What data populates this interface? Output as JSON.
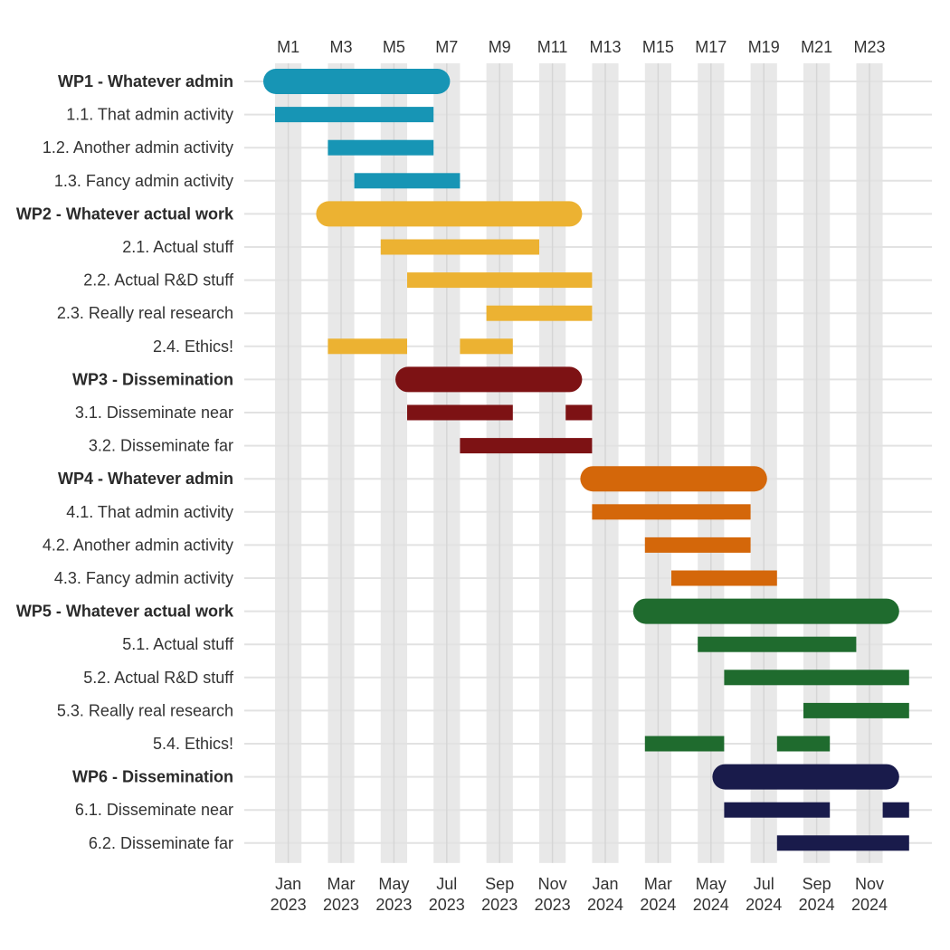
{
  "chart_data": {
    "type": "gantt",
    "title": "",
    "x_unit": "project month",
    "x_range": [
      1,
      24
    ],
    "top_axis_ticks": [
      {
        "month": 1,
        "label": "M1"
      },
      {
        "month": 3,
        "label": "M3"
      },
      {
        "month": 5,
        "label": "M5"
      },
      {
        "month": 7,
        "label": "M7"
      },
      {
        "month": 9,
        "label": "M9"
      },
      {
        "month": 11,
        "label": "M11"
      },
      {
        "month": 13,
        "label": "M13"
      },
      {
        "month": 15,
        "label": "M15"
      },
      {
        "month": 17,
        "label": "M17"
      },
      {
        "month": 19,
        "label": "M19"
      },
      {
        "month": 21,
        "label": "M21"
      },
      {
        "month": 23,
        "label": "M23"
      }
    ],
    "bottom_axis_ticks": [
      {
        "month": 1,
        "month_label": "Jan",
        "year_label": "2023"
      },
      {
        "month": 3,
        "month_label": "Mar",
        "year_label": "2023"
      },
      {
        "month": 5,
        "month_label": "May",
        "year_label": "2023"
      },
      {
        "month": 7,
        "month_label": "Jul",
        "year_label": "2023"
      },
      {
        "month": 9,
        "month_label": "Sep",
        "year_label": "2023"
      },
      {
        "month": 11,
        "month_label": "Nov",
        "year_label": "2023"
      },
      {
        "month": 13,
        "month_label": "Jan",
        "year_label": "2024"
      },
      {
        "month": 15,
        "month_label": "Mar",
        "year_label": "2024"
      },
      {
        "month": 17,
        "month_label": "May",
        "year_label": "2024"
      },
      {
        "month": 19,
        "month_label": "Jul",
        "year_label": "2024"
      },
      {
        "month": 21,
        "month_label": "Sep",
        "year_label": "2024"
      },
      {
        "month": 23,
        "month_label": "Nov",
        "year_label": "2024"
      }
    ],
    "work_packages": [
      {
        "id": "wp1",
        "label": "WP1 - Whatever admin",
        "color": "#1795b5",
        "start": 1,
        "end": 8,
        "activities": [
          {
            "label": "1.1. That admin activity",
            "segments": [
              [
                1,
                6
              ]
            ]
          },
          {
            "label": "1.2. Another admin activity",
            "segments": [
              [
                3,
                6
              ]
            ]
          },
          {
            "label": "1.3. Fancy admin activity",
            "segments": [
              [
                4,
                7
              ]
            ]
          }
        ]
      },
      {
        "id": "wp2",
        "label": "WP2 - Whatever actual work",
        "color": "#ecb232",
        "start": 3,
        "end": 13,
        "activities": [
          {
            "label": "2.1. Actual stuff",
            "segments": [
              [
                5,
                10
              ]
            ]
          },
          {
            "label": "2.2. Actual R&D stuff",
            "segments": [
              [
                6,
                12
              ]
            ]
          },
          {
            "label": "2.3. Really real research",
            "segments": [
              [
                9,
                12
              ]
            ]
          },
          {
            "label": "2.4. Ethics!",
            "segments": [
              [
                3,
                5
              ],
              [
                8,
                9
              ]
            ]
          }
        ]
      },
      {
        "id": "wp3",
        "label": "WP3 - Dissemination",
        "color": "#7d1214",
        "start": 6,
        "end": 13,
        "activities": [
          {
            "label": "3.1. Disseminate near",
            "segments": [
              [
                6,
                9
              ],
              [
                12,
                12
              ]
            ]
          },
          {
            "label": "3.2. Disseminate far",
            "segments": [
              [
                8,
                12
              ]
            ]
          }
        ]
      },
      {
        "id": "wp4",
        "label": "WP4 - Whatever admin",
        "color": "#d4670a",
        "start": 13,
        "end": 20,
        "activities": [
          {
            "label": "4.1. That admin activity",
            "segments": [
              [
                13,
                18
              ]
            ]
          },
          {
            "label": "4.2. Another admin activity",
            "segments": [
              [
                15,
                18
              ]
            ]
          },
          {
            "label": "4.3. Fancy admin activity",
            "segments": [
              [
                16,
                19
              ]
            ]
          }
        ]
      },
      {
        "id": "wp5",
        "label": "WP5 - Whatever actual work",
        "color": "#1f6b2e",
        "start": 15,
        "end": 25,
        "activities": [
          {
            "label": "5.1. Actual stuff",
            "segments": [
              [
                17,
                22
              ]
            ]
          },
          {
            "label": "5.2. Actual R&D stuff",
            "segments": [
              [
                18,
                24
              ]
            ]
          },
          {
            "label": "5.3. Really real research",
            "segments": [
              [
                21,
                24
              ]
            ]
          },
          {
            "label": "5.4. Ethics!",
            "segments": [
              [
                15,
                17
              ],
              [
                20,
                21
              ]
            ]
          }
        ]
      },
      {
        "id": "wp6",
        "label": "WP6 - Dissemination",
        "color": "#191b4b",
        "start": 18,
        "end": 25,
        "activities": [
          {
            "label": "6.1. Disseminate near",
            "segments": [
              [
                18,
                21
              ],
              [
                24,
                24
              ]
            ]
          },
          {
            "label": "6.2. Disseminate far",
            "segments": [
              [
                20,
                24
              ]
            ]
          }
        ]
      }
    ],
    "gridlines": true,
    "alternating_month_shading": true,
    "legend": "none"
  }
}
